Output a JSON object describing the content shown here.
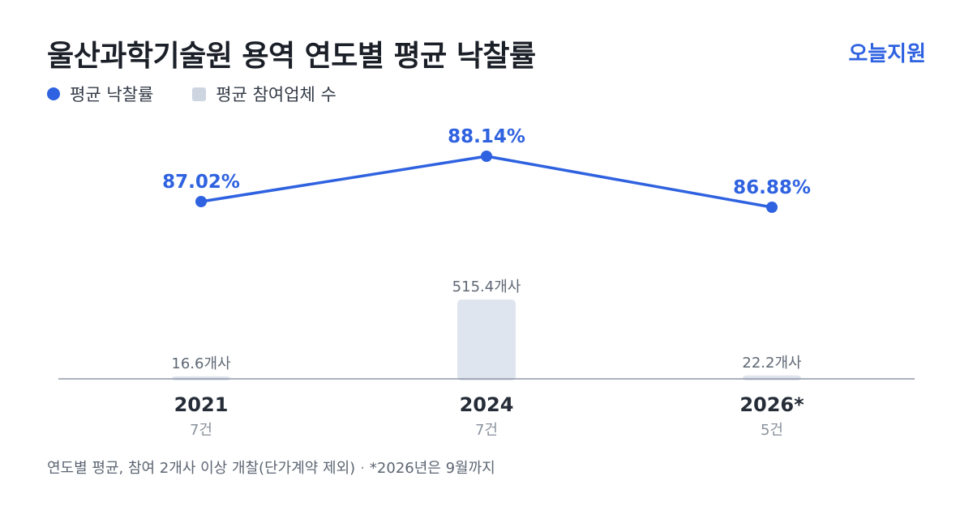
{
  "header": {
    "title": "울산과학기술원 용역 연도별 평균 낙찰률",
    "brand": "오늘지원"
  },
  "legend": {
    "line_label": "평균 낙찰률",
    "bar_label": "평균 참여업체 수"
  },
  "colors": {
    "line": "#2f62e0",
    "bar": "#dfe5ee",
    "axis": "#8f98a5"
  },
  "chart_data": {
    "type": "bar",
    "categories": [
      "2021",
      "2024",
      "2026*"
    ],
    "category_counts": [
      "7건",
      "7건",
      "5건"
    ],
    "series": [
      {
        "name": "평균 낙찰률",
        "type": "line",
        "values": [
          87.02,
          88.14,
          86.88
        ],
        "labels": [
          "87.02%",
          "88.14%",
          "86.88%"
        ]
      },
      {
        "name": "평균 참여업체 수",
        "type": "bar",
        "values": [
          16.6,
          515.4,
          22.2
        ],
        "labels": [
          "16.6개사",
          "515.4개사",
          "22.2개사"
        ]
      }
    ],
    "legend_position": "top-left",
    "grid": false
  },
  "footnote": {
    "main": "연도별 평균, 참여 2개사 이상 개찰(단가계약 제외)",
    "separator": "·",
    "note": "*2026년은 9월까지"
  }
}
